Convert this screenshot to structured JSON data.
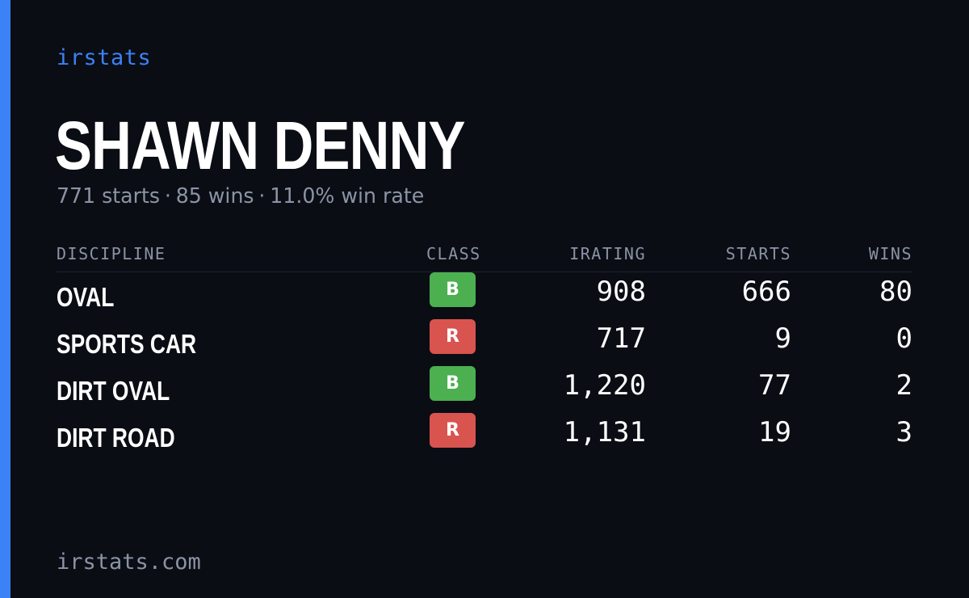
{
  "brand": "irstats",
  "driver_name": "SHAWN DENNY",
  "summary": {
    "starts": "771 starts",
    "wins": "85 wins",
    "win_rate": "11.0% win rate",
    "separator": "·"
  },
  "table": {
    "headers": {
      "discipline": "DISCIPLINE",
      "class": "CLASS",
      "irating": "IRATING",
      "starts": "STARTS",
      "wins": "WINS"
    },
    "rows": [
      {
        "discipline": "OVAL",
        "class": "B",
        "class_color": "#4caf50",
        "irating": "908",
        "starts": "666",
        "wins": "80"
      },
      {
        "discipline": "SPORTS CAR",
        "class": "R",
        "class_color": "#d9534f",
        "irating": "717",
        "starts": "9",
        "wins": "0"
      },
      {
        "discipline": "DIRT OVAL",
        "class": "B",
        "class_color": "#4caf50",
        "irating": "1,220",
        "starts": "77",
        "wins": "2"
      },
      {
        "discipline": "DIRT ROAD",
        "class": "R",
        "class_color": "#d9534f",
        "irating": "1,131",
        "starts": "19",
        "wins": "3"
      }
    ]
  },
  "footer": "irstats.com",
  "colors": {
    "accent": "#3b82f6",
    "background": "#0a0d14"
  }
}
